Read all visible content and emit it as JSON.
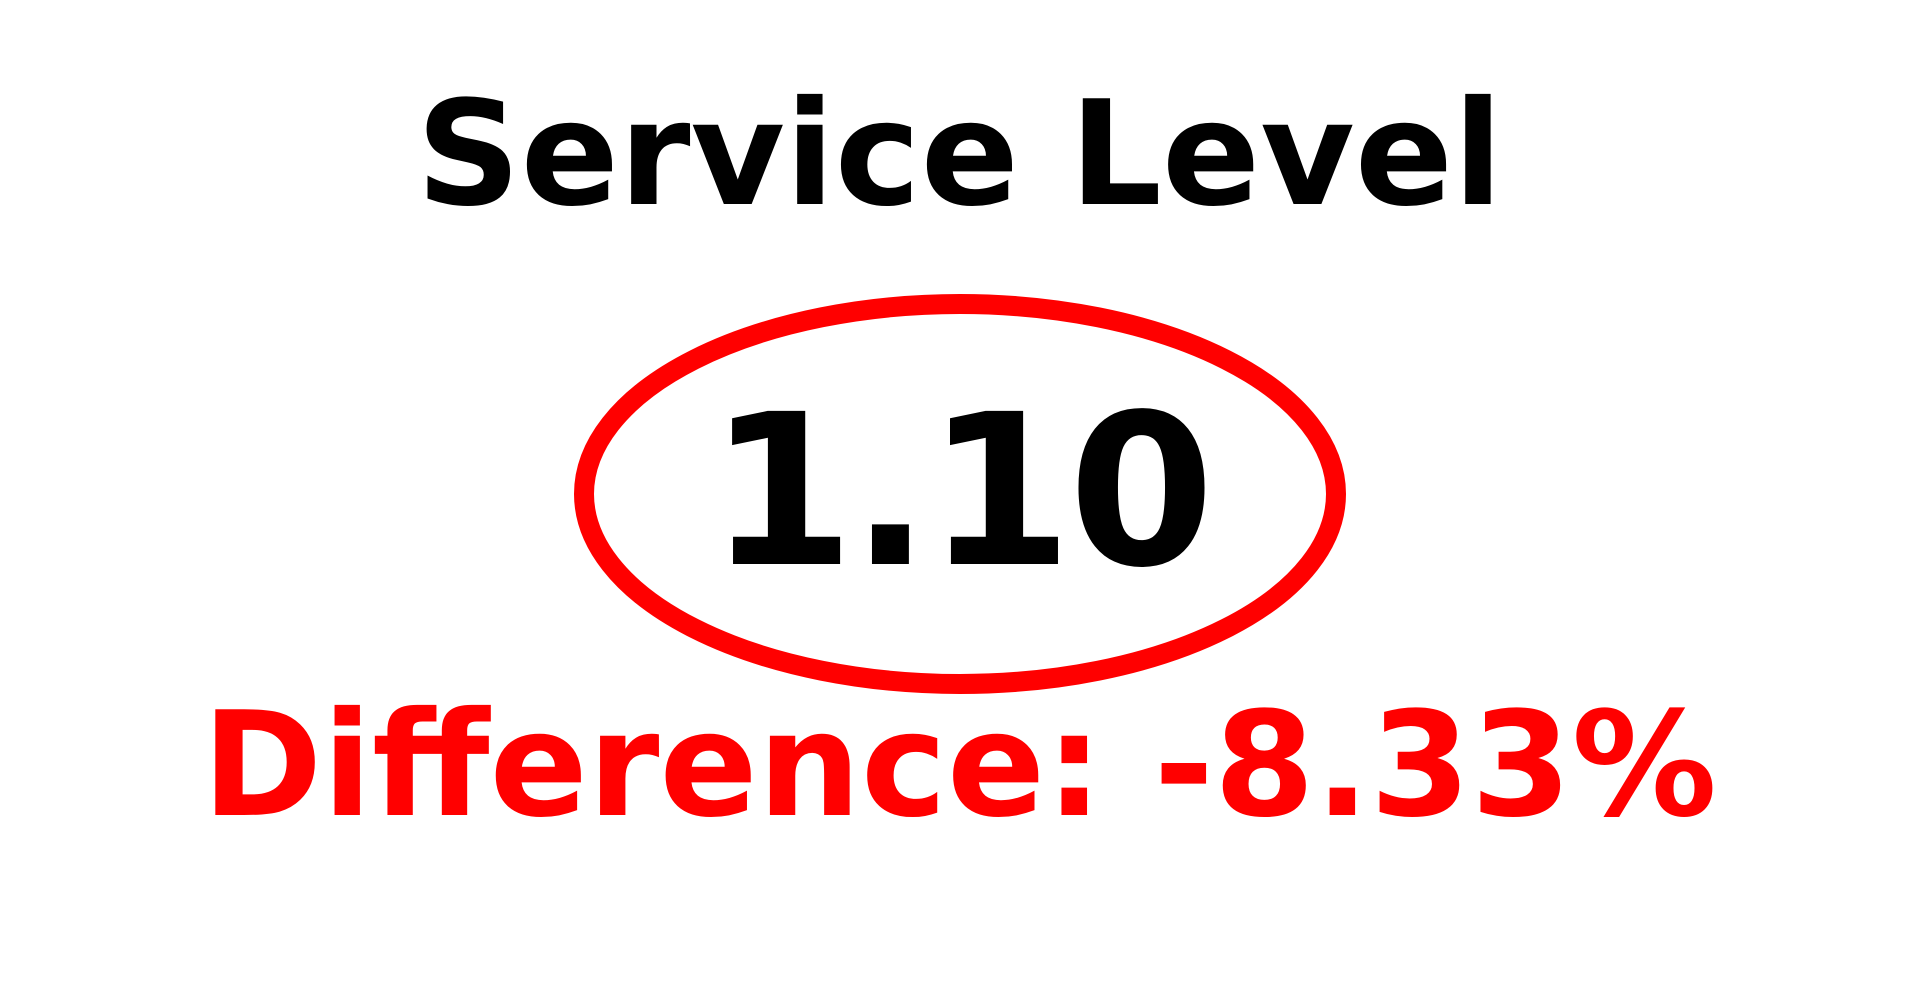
{
  "kpi": {
    "title": "Service Level",
    "value": "1.10",
    "difference_label": "Difference:",
    "difference_value": "-8.33%"
  },
  "colors": {
    "ring": "#ff0000",
    "difference": "#ff0000",
    "value": "#000000",
    "title": "#000000"
  },
  "chart_data": {
    "type": "table",
    "title": "Service Level",
    "value": 1.1,
    "difference_percent": -8.33
  }
}
